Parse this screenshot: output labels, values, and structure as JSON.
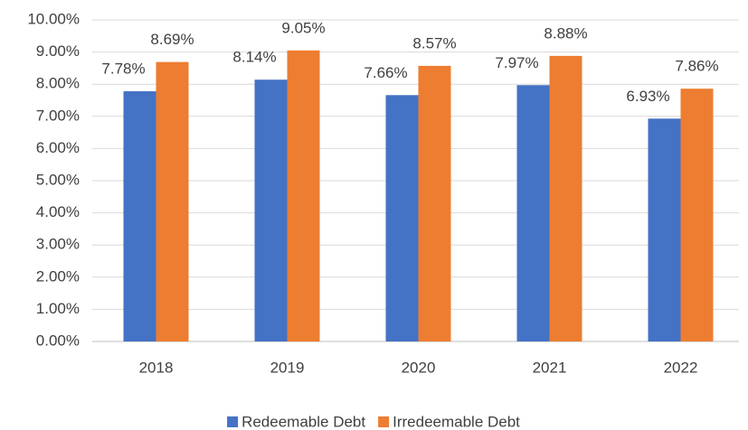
{
  "chart_data": {
    "type": "bar",
    "categories": [
      "2018",
      "2019",
      "2020",
      "2021",
      "2022"
    ],
    "series": [
      {
        "name": "Redeemable Debt",
        "color": "#4472c4",
        "values": [
          7.78,
          8.14,
          7.66,
          7.97,
          6.93
        ],
        "value_labels": [
          "7.78%",
          "8.14%",
          "7.66%",
          "7.97%",
          "6.93%"
        ]
      },
      {
        "name": "Irredeemable Debt",
        "color": "#ed7d31",
        "values": [
          8.69,
          9.05,
          8.57,
          8.88,
          7.86
        ],
        "value_labels": [
          "8.69%",
          "9.05%",
          "8.57%",
          "8.88%",
          "7.86%"
        ]
      }
    ],
    "ylim": [
      0,
      10
    ],
    "yticks": [
      {
        "value": 0,
        "label": "0.00%"
      },
      {
        "value": 1,
        "label": "1.00%"
      },
      {
        "value": 2,
        "label": "2.00%"
      },
      {
        "value": 3,
        "label": "3.00%"
      },
      {
        "value": 4,
        "label": "4.00%"
      },
      {
        "value": 5,
        "label": "5.00%"
      },
      {
        "value": 6,
        "label": "6.00%"
      },
      {
        "value": 7,
        "label": "7.00%"
      },
      {
        "value": 8,
        "label": "8.00%"
      },
      {
        "value": 9,
        "label": "9.00%"
      },
      {
        "value": 10,
        "label": "10.00%"
      }
    ],
    "grid": true,
    "legend": "bottom"
  }
}
